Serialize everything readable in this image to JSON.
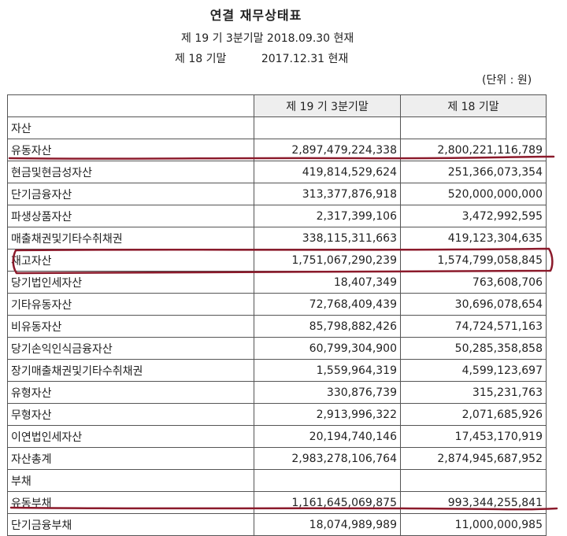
{
  "title": "연결 재무상태표",
  "period_current": "제 19 기 3분기말 2018.09.30 현재",
  "period_prior": "제 18 기말          2017.12.31 현재",
  "unit": "(단위 : 원)",
  "columns": [
    "",
    "제 19 기 3분기말",
    "제 18 기말"
  ],
  "rows": [
    {
      "label": "자산",
      "cur": "",
      "prev": ""
    },
    {
      "label": "유동자산",
      "cur": "2,897,479,224,338",
      "prev": "2,800,221,116,789"
    },
    {
      "label": "현금및현금성자산",
      "cur": "419,814,529,624",
      "prev": "251,366,073,354"
    },
    {
      "label": "단기금융자산",
      "cur": "313,377,876,918",
      "prev": "520,000,000,000"
    },
    {
      "label": "파생상품자산",
      "cur": "2,317,399,106",
      "prev": "3,472,992,595"
    },
    {
      "label": "매출채권및기타수취채권",
      "cur": "338,115,311,663",
      "prev": "419,123,304,635"
    },
    {
      "label": "재고자산",
      "cur": "1,751,067,290,239",
      "prev": "1,574,799,058,845"
    },
    {
      "label": "당기법인세자산",
      "cur": "18,407,349",
      "prev": "763,608,706"
    },
    {
      "label": "기타유동자산",
      "cur": "72,768,409,439",
      "prev": "30,696,078,654"
    },
    {
      "label": "비유동자산",
      "cur": "85,798,882,426",
      "prev": "74,724,571,163"
    },
    {
      "label": "당기손익인식금융자산",
      "cur": "60,799,304,900",
      "prev": "50,285,358,858"
    },
    {
      "label": "장기매출채권및기타수취채권",
      "cur": "1,559,964,319",
      "prev": "4,599,123,697"
    },
    {
      "label": "유형자산",
      "cur": "330,876,739",
      "prev": "315,231,763"
    },
    {
      "label": "무형자산",
      "cur": "2,913,996,322",
      "prev": "2,071,685,926"
    },
    {
      "label": "이연법인세자산",
      "cur": "20,194,740,146",
      "prev": "17,453,170,919"
    },
    {
      "label": "자산총계",
      "cur": "2,983,278,106,764",
      "prev": "2,874,945,687,952"
    },
    {
      "label": "부채",
      "cur": "",
      "prev": ""
    },
    {
      "label": "유동부채",
      "cur": "1,161,645,069,875",
      "prev": "993,344,255,841"
    },
    {
      "label": "단기금융부채",
      "cur": "18,074,989,989",
      "prev": "11,000,000,985"
    }
  ],
  "colors": {
    "annotation": "#8b1a2b",
    "header_bg": "#eeeeee",
    "border": "#555555"
  }
}
